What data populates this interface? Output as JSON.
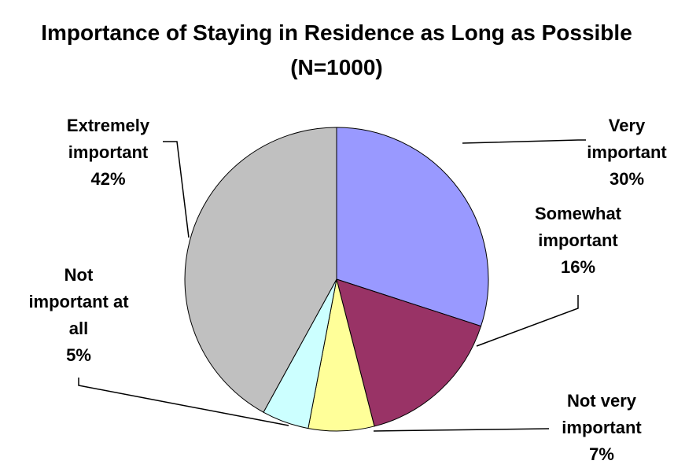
{
  "chart_data": {
    "type": "pie",
    "title": "Importance of Staying in Residence as Long as Possible (N=1000)",
    "categories": [
      "Very important",
      "Somewhat important",
      "Not very important",
      "Not important at all",
      "Extremely important"
    ],
    "values": [
      30,
      16,
      7,
      5,
      42
    ],
    "value_labels": [
      "30%",
      "16%",
      "7%",
      "5%",
      "42%"
    ],
    "colors": [
      "#9999ff",
      "#993366",
      "#ffff99",
      "#ccffff",
      "#c0c0c0"
    ]
  }
}
